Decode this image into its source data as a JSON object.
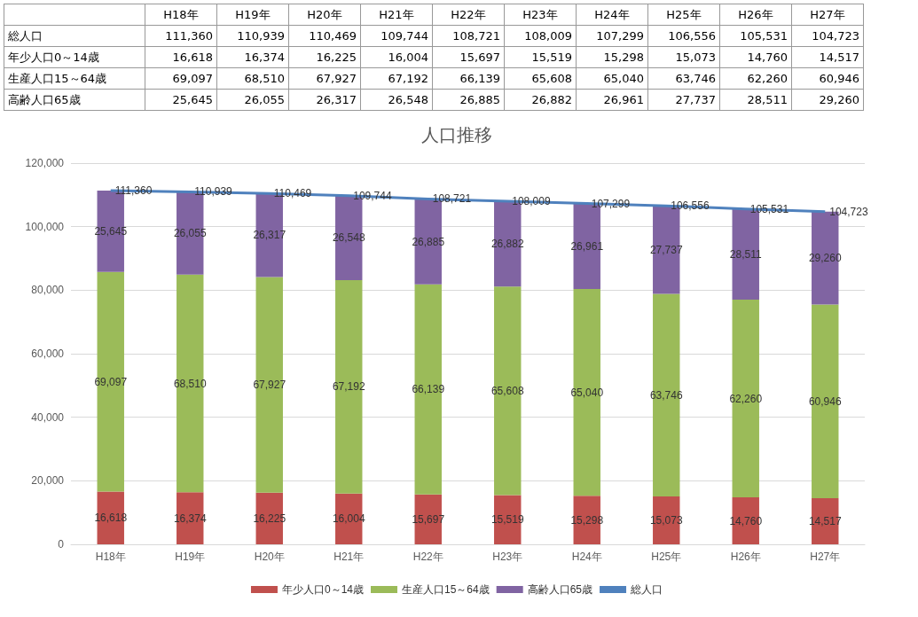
{
  "chart_data": {
    "type": "bar",
    "title": "人口推移",
    "stacked": true,
    "grid": "y",
    "legend": "bottom",
    "marker": "none",
    "line_style": "solid",
    "categories": [
      "H18年",
      "H19年",
      "H20年",
      "H21年",
      "H22年",
      "H23年",
      "H24年",
      "H25年",
      "H26年",
      "H27年"
    ],
    "ylim": [
      0,
      120000
    ],
    "yticks": [
      0,
      {
        "value": 20000,
        "label": "20,000"
      },
      {
        "value": 40000,
        "label": "40,000"
      },
      {
        "value": 60000,
        "label": "60,000"
      },
      {
        "value": 80000,
        "label": "80,000"
      },
      {
        "value": 100000,
        "label": "100,000"
      },
      {
        "value": 120000,
        "label": "120,000"
      }
    ],
    "series": [
      {
        "name": "年少人口0～14歳",
        "color": "#c0504d",
        "values": [
          16618,
          16374,
          16225,
          16004,
          15697,
          15519,
          15298,
          15073,
          14760,
          14517
        ],
        "value_labels": [
          "16,618",
          "16,374",
          "16,225",
          "16,004",
          "15,697",
          "15,519",
          "15,298",
          "15,073",
          "14,760",
          "14,517"
        ]
      },
      {
        "name": "生産人口15～64歳",
        "color": "#9bbb59",
        "values": [
          69097,
          68510,
          67927,
          67192,
          66139,
          65608,
          65040,
          63746,
          62260,
          60946
        ],
        "value_labels": [
          "69,097",
          "68,510",
          "67,927",
          "67,192",
          "66,139",
          "65,608",
          "65,040",
          "63,746",
          "62,260",
          "60,946"
        ]
      },
      {
        "name": "高齢人口65歳",
        "color": "#8064a2",
        "values": [
          25645,
          26055,
          26317,
          26548,
          26885,
          26882,
          26961,
          27737,
          28511,
          29260
        ],
        "value_labels": [
          "25,645",
          "26,055",
          "26,317",
          "26,548",
          "26,885",
          "26,882",
          "26,961",
          "27,737",
          "28,511",
          "29,260"
        ]
      },
      {
        "name": "総人口",
        "type": "line",
        "color": "#4f81bd",
        "values": [
          111360,
          110939,
          110469,
          109744,
          108721,
          108009,
          107299,
          106556,
          105531,
          104723
        ],
        "value_labels": [
          "111,360",
          "110,939",
          "110,469",
          "109,744",
          "108,721",
          "108,009",
          "107,299",
          "106,556",
          "105,531",
          "104,723"
        ]
      }
    ]
  }
}
